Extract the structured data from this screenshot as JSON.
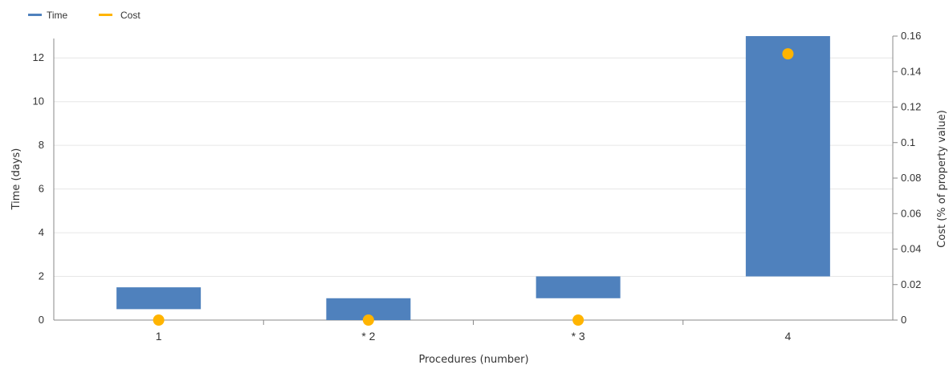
{
  "legend": {
    "items": [
      {
        "label": "Time",
        "color": "#4f81bd"
      },
      {
        "label": "Cost",
        "color": "#ffb400"
      }
    ]
  },
  "chart_data": {
    "type": "bar",
    "subtype": "floating-bar-with-points",
    "categories": [
      "1",
      "* 2",
      "* 3",
      "4"
    ],
    "series": [
      {
        "name": "Time",
        "kind": "floating-bar",
        "axis": "left",
        "color": "#4f81bd",
        "values": [
          [
            0.5,
            1.5
          ],
          [
            0,
            1
          ],
          [
            1,
            2
          ],
          [
            2,
            13
          ]
        ]
      },
      {
        "name": "Cost",
        "kind": "point",
        "axis": "right",
        "color": "#ffb400",
        "values": [
          0,
          0,
          0,
          0.15
        ]
      }
    ],
    "xlabel": "Procedures (number)",
    "ylabel": "Time (days)",
    "y2label": "Cost (% of property value)",
    "ylim": [
      0,
      13
    ],
    "y2lim": [
      0,
      0.16
    ],
    "yticks": [
      "0",
      "2",
      "4",
      "6",
      "8",
      "10",
      "12"
    ],
    "y2ticks": [
      "0",
      "0.02",
      "0.04",
      "0.06",
      "0.08",
      "0.1",
      "0.12",
      "0.14",
      "0.16"
    ],
    "grid": true,
    "legend_position": "top-left"
  }
}
